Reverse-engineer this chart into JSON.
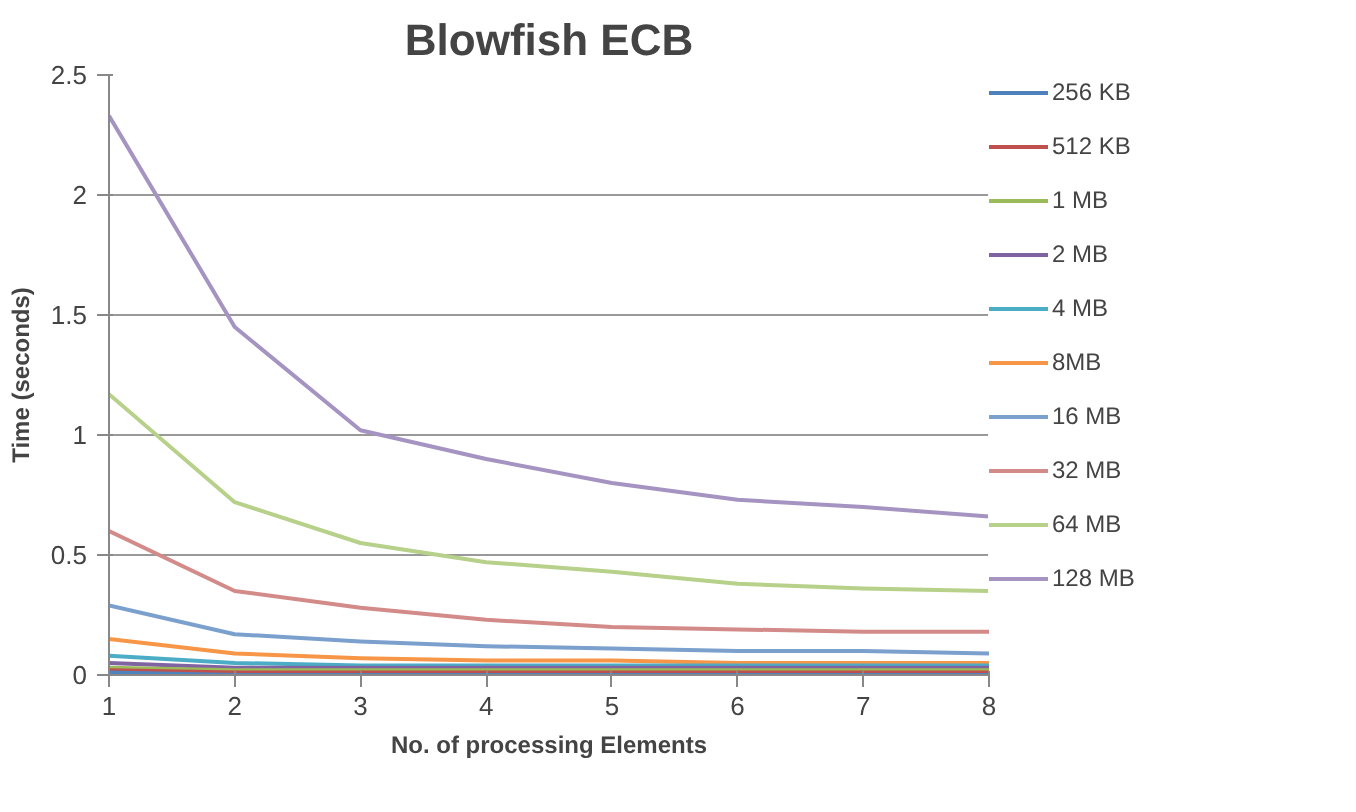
{
  "chart_data": {
    "type": "line",
    "title": "Blowfish ECB",
    "xlabel": "No. of processing Elements",
    "ylabel": "Time (seconds)",
    "x": [
      1,
      2,
      3,
      4,
      5,
      6,
      7,
      8
    ],
    "xlim": [
      1,
      8
    ],
    "xticks": [
      1,
      2,
      3,
      4,
      5,
      6,
      7,
      8
    ],
    "ylim": [
      0,
      2.5
    ],
    "yticks": [
      0,
      0.5,
      1,
      1.5,
      2,
      2.5
    ],
    "grid": "y",
    "legend": "right",
    "line_style": "solid",
    "marker": "none",
    "series": [
      {
        "name": "256 KB",
        "color": "#4f81bd",
        "values": [
          0.01,
          0,
          0,
          0,
          0,
          0,
          0,
          0
        ]
      },
      {
        "name": "512 KB",
        "color": "#c0504d",
        "values": [
          0.02,
          0.01,
          0.01,
          0.01,
          0.01,
          0.01,
          0.01,
          0.01
        ]
      },
      {
        "name": "1 MB",
        "color": "#9bbb59",
        "values": [
          0.03,
          0.02,
          0.02,
          0.02,
          0.02,
          0.02,
          0.02,
          0.02
        ]
      },
      {
        "name": "2 MB",
        "color": "#8064a2",
        "values": [
          0.05,
          0.03,
          0.03,
          0.03,
          0.03,
          0.03,
          0.03,
          0.03
        ]
      },
      {
        "name": "4 MB",
        "color": "#4bacc6",
        "values": [
          0.08,
          0.05,
          0.04,
          0.04,
          0.04,
          0.04,
          0.04,
          0.04
        ]
      },
      {
        "name": "8MB",
        "color": "#f79646",
        "values": [
          0.15,
          0.09,
          0.07,
          0.06,
          0.06,
          0.05,
          0.05,
          0.05
        ]
      },
      {
        "name": "16 MB",
        "color": "#7ba0cd",
        "values": [
          0.29,
          0.17,
          0.14,
          0.12,
          0.11,
          0.1,
          0.1,
          0.09
        ]
      },
      {
        "name": "32 MB",
        "color": "#d38b89",
        "values": [
          0.6,
          0.35,
          0.28,
          0.23,
          0.2,
          0.19,
          0.18,
          0.18
        ]
      },
      {
        "name": "64 MB",
        "color": "#b7d08a",
        "values": [
          1.17,
          0.72,
          0.55,
          0.47,
          0.43,
          0.38,
          0.36,
          0.35
        ]
      },
      {
        "name": "128 MB",
        "color": "#a593c2",
        "values": [
          2.33,
          1.45,
          1.02,
          0.9,
          0.8,
          0.73,
          0.7,
          0.66
        ]
      }
    ]
  }
}
